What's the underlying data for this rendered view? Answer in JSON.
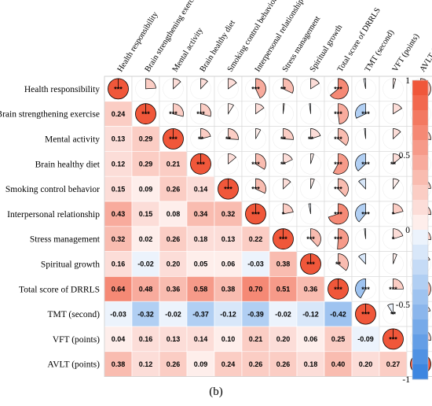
{
  "chart_data": {
    "type": "heatmap",
    "title": "",
    "variables": [
      "Health responsibility",
      "Brain strengthening exercise",
      "Mental activity",
      "Brain healthy diet",
      "Smoking control behavior",
      "Interpersonal relationship",
      "Stress management",
      "Spiritual growth",
      "Total score of  DRRLS",
      "TMT (second)",
      "VFT (points)",
      "AVLT (points)"
    ],
    "column_labels": [
      "Health responsibility",
      "Brain strengthening exercise",
      "Mental activity",
      "Brain healthy diet",
      "Smoking control behavior",
      "Interpersonal relationship",
      "Stress management",
      "Spiritual growth",
      "Total score of  DRRLS",
      "TMT (second)",
      "VFT (points)",
      "AVLT (points)"
    ],
    "matrix": [
      [
        1.0,
        0.24,
        0.13,
        0.12,
        0.15,
        0.43,
        0.32,
        0.16,
        0.64,
        -0.03,
        0.04,
        0.38
      ],
      [
        0.24,
        1.0,
        0.29,
        0.29,
        0.09,
        0.15,
        0.02,
        -0.02,
        0.48,
        -0.32,
        0.16,
        0.12
      ],
      [
        0.13,
        0.29,
        1.0,
        0.21,
        0.26,
        0.08,
        0.26,
        0.2,
        0.36,
        -0.02,
        0.13,
        0.26
      ],
      [
        0.12,
        0.29,
        0.21,
        1.0,
        0.14,
        0.34,
        0.18,
        0.05,
        0.58,
        -0.37,
        0.14,
        0.09
      ],
      [
        0.15,
        0.09,
        0.26,
        0.14,
        1.0,
        0.32,
        0.13,
        0.06,
        0.38,
        -0.12,
        0.1,
        0.24
      ],
      [
        0.43,
        0.15,
        0.08,
        0.34,
        0.32,
        1.0,
        0.22,
        -0.03,
        0.7,
        -0.39,
        0.21,
        0.26
      ],
      [
        0.32,
        0.02,
        0.26,
        0.18,
        0.13,
        0.22,
        1.0,
        0.38,
        0.51,
        -0.02,
        0.2,
        0.26
      ],
      [
        0.16,
        -0.02,
        0.2,
        0.05,
        0.06,
        -0.03,
        0.38,
        1.0,
        0.36,
        -0.12,
        0.06,
        0.18
      ],
      [
        0.64,
        0.48,
        0.36,
        0.58,
        0.38,
        0.7,
        0.51,
        0.36,
        1.0,
        -0.42,
        0.25,
        0.4
      ],
      [
        -0.03,
        -0.32,
        -0.02,
        -0.37,
        -0.12,
        -0.39,
        -0.02,
        -0.12,
        -0.42,
        1.0,
        -0.09,
        0.2
      ],
      [
        0.04,
        0.16,
        0.13,
        0.14,
        0.1,
        0.21,
        0.2,
        0.06,
        0.25,
        -0.09,
        1.0,
        0.27
      ],
      [
        0.38,
        0.12,
        0.26,
        0.09,
        0.24,
        0.26,
        0.26,
        0.18,
        0.4,
        0.2,
        0.27,
        1.0
      ]
    ],
    "significance_upper": [
      [
        "***",
        "",
        "",
        "",
        "",
        "***",
        "**",
        "",
        "***",
        "",
        "",
        "**"
      ],
      [
        "",
        "***",
        "***",
        "***",
        "",
        "",
        "",
        "",
        "***",
        "***",
        "",
        ""
      ],
      [
        "",
        "",
        "***",
        "**",
        "**",
        "",
        "**",
        "**",
        "***",
        "",
        "",
        ""
      ],
      [
        "",
        "",
        "",
        "***",
        "",
        "***",
        "**",
        "",
        "***",
        "***",
        "**",
        ""
      ],
      [
        "",
        "",
        "",
        "",
        "***",
        "***",
        "",
        "",
        "***",
        "",
        "",
        ""
      ],
      [
        "",
        "",
        "",
        "",
        "",
        "***",
        "*",
        "",
        "***",
        "***",
        "*",
        "**"
      ],
      [
        "",
        "",
        "",
        "",
        "",
        "",
        "***",
        "***",
        "***",
        "",
        "*",
        "*"
      ],
      [
        "",
        "",
        "",
        "",
        "",
        "",
        "",
        "***",
        "**",
        "",
        "",
        ""
      ],
      [
        "",
        "",
        "",
        "",
        "",
        "",
        "",
        "",
        "***",
        "***",
        "***",
        "***"
      ],
      [
        "",
        "",
        "",
        "",
        "",
        "",
        "",
        "",
        "",
        "***",
        "**",
        ""
      ],
      [
        "",
        "",
        "",
        "",
        "",
        "",
        "",
        "",
        "",
        "",
        "***",
        "***"
      ],
      [
        "",
        "",
        "",
        "",
        "",
        "",
        "",
        "",
        "",
        "",
        "",
        "***"
      ]
    ],
    "lower_triangle": "correlation values",
    "upper_triangle": "pie glyphs sized by |r| with significance stars",
    "colorbar": {
      "ticks": [
        "1",
        "0.5",
        "0",
        "-0.5",
        "-1"
      ],
      "range": [
        -1,
        1
      ]
    },
    "colors": {
      "positive": "#f0573a",
      "negative": "#3d86e0",
      "neutral": "#ffffff"
    },
    "panel_label": "(b)"
  }
}
